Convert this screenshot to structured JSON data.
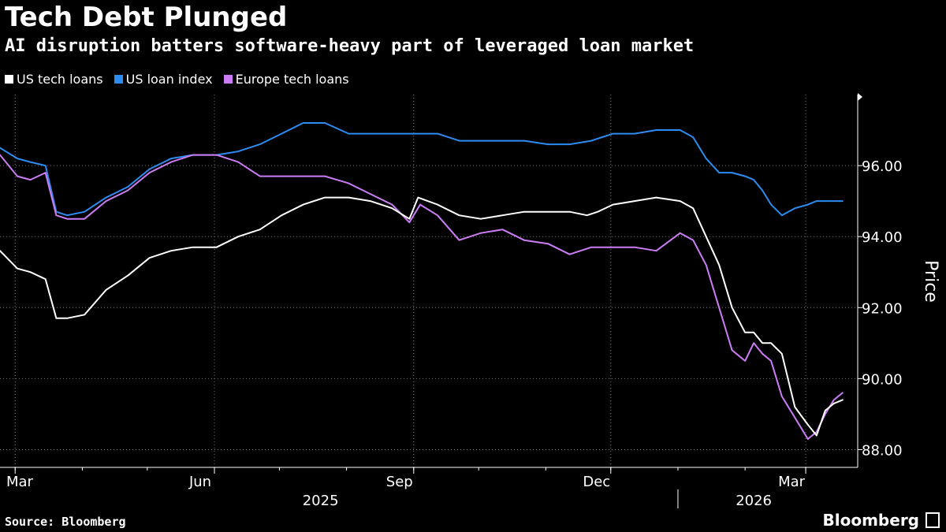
{
  "header": {
    "title": "Tech Debt Plunged",
    "subtitle": "AI disruption batters software-heavy part of leveraged loan market"
  },
  "footer": {
    "source": "Source: Bloomberg",
    "brand": "Bloomberg"
  },
  "chart_data": {
    "type": "line",
    "title": "Tech Debt Plunged",
    "subtitle": "AI disruption batters software-heavy part of leveraged loan market",
    "xlabel": "",
    "ylabel": "Price",
    "ylim": [
      87.5,
      98.0
    ],
    "yticks": [
      "88.00",
      "90.00",
      "92.00",
      "94.00",
      "96.00"
    ],
    "ytick_values": [
      88,
      90,
      92,
      94,
      96
    ],
    "xticks": [
      "Mar",
      "Jun",
      "Sep",
      "Dec",
      "Mar"
    ],
    "xtick_dates": [
      "2025-03-01",
      "2025-06-01",
      "2025-09-01",
      "2025-12-01",
      "2026-03-01"
    ],
    "year_labels": [
      "2025",
      "2026"
    ],
    "x_range": [
      "2025-02-22",
      "2026-03-25"
    ],
    "grid": true,
    "legend_position": "top-left",
    "series": [
      {
        "name": "US tech loans",
        "color": "#ffffff",
        "x": [
          "2025-02-22",
          "2025-03-02",
          "2025-03-08",
          "2025-03-15",
          "2025-03-20",
          "2025-03-25",
          "2025-04-02",
          "2025-04-12",
          "2025-04-22",
          "2025-05-02",
          "2025-05-12",
          "2025-05-22",
          "2025-06-02",
          "2025-06-12",
          "2025-06-22",
          "2025-07-02",
          "2025-07-12",
          "2025-07-22",
          "2025-08-02",
          "2025-08-12",
          "2025-08-22",
          "2025-08-30",
          "2025-09-03",
          "2025-09-12",
          "2025-09-22",
          "2025-10-02",
          "2025-10-12",
          "2025-10-22",
          "2025-11-02",
          "2025-11-12",
          "2025-11-20",
          "2025-11-25",
          "2025-12-02",
          "2025-12-12",
          "2025-12-22",
          "2026-01-02",
          "2026-01-08",
          "2026-01-14",
          "2026-01-20",
          "2026-01-26",
          "2026-02-01",
          "2026-02-05",
          "2026-02-09",
          "2026-02-13",
          "2026-02-18",
          "2026-02-24",
          "2026-03-02",
          "2026-03-06",
          "2026-03-10",
          "2026-03-14",
          "2026-03-18"
        ],
        "y": [
          93.6,
          93.1,
          93.0,
          92.8,
          91.7,
          91.7,
          91.8,
          92.5,
          92.9,
          93.4,
          93.6,
          93.7,
          93.7,
          94.0,
          94.2,
          94.6,
          94.9,
          95.1,
          95.1,
          95.0,
          94.8,
          94.5,
          95.1,
          94.9,
          94.6,
          94.5,
          94.6,
          94.7,
          94.7,
          94.7,
          94.6,
          94.7,
          94.9,
          95.0,
          95.1,
          95.0,
          94.8,
          94.0,
          93.2,
          92.0,
          91.3,
          91.3,
          91.0,
          91.0,
          90.7,
          89.2,
          88.7,
          88.4,
          89.1,
          89.3,
          89.4
        ]
      },
      {
        "name": "US loan index",
        "color": "#2d8cf0",
        "x": [
          "2025-02-22",
          "2025-03-02",
          "2025-03-08",
          "2025-03-15",
          "2025-03-20",
          "2025-03-25",
          "2025-04-02",
          "2025-04-12",
          "2025-04-22",
          "2025-05-02",
          "2025-05-12",
          "2025-05-22",
          "2025-06-02",
          "2025-06-12",
          "2025-06-22",
          "2025-07-02",
          "2025-07-12",
          "2025-07-22",
          "2025-08-02",
          "2025-08-12",
          "2025-08-22",
          "2025-09-02",
          "2025-09-12",
          "2025-09-22",
          "2025-10-02",
          "2025-10-12",
          "2025-10-22",
          "2025-11-02",
          "2025-11-12",
          "2025-11-22",
          "2025-12-02",
          "2025-12-12",
          "2025-12-22",
          "2026-01-02",
          "2026-01-08",
          "2026-01-14",
          "2026-01-20",
          "2026-01-26",
          "2026-02-01",
          "2026-02-05",
          "2026-02-09",
          "2026-02-13",
          "2026-02-18",
          "2026-02-24",
          "2026-03-02",
          "2026-03-06",
          "2026-03-10",
          "2026-03-14",
          "2026-03-18"
        ],
        "y": [
          96.5,
          96.2,
          96.1,
          96.0,
          94.7,
          94.6,
          94.7,
          95.1,
          95.4,
          95.9,
          96.2,
          96.3,
          96.3,
          96.4,
          96.6,
          96.9,
          97.2,
          97.2,
          96.9,
          96.9,
          96.9,
          96.9,
          96.9,
          96.7,
          96.7,
          96.7,
          96.7,
          96.6,
          96.6,
          96.7,
          96.9,
          96.9,
          97.0,
          97.0,
          96.8,
          96.2,
          95.8,
          95.8,
          95.7,
          95.6,
          95.3,
          94.9,
          94.6,
          94.8,
          94.9,
          95.0,
          95.0,
          95.0,
          95.0
        ]
      },
      {
        "name": "Europe tech loans",
        "color": "#cc7df5",
        "x": [
          "2025-02-22",
          "2025-03-02",
          "2025-03-08",
          "2025-03-15",
          "2025-03-20",
          "2025-03-25",
          "2025-04-02",
          "2025-04-12",
          "2025-04-22",
          "2025-05-02",
          "2025-05-12",
          "2025-05-22",
          "2025-06-02",
          "2025-06-12",
          "2025-06-22",
          "2025-07-02",
          "2025-07-12",
          "2025-07-22",
          "2025-08-02",
          "2025-08-12",
          "2025-08-22",
          "2025-08-30",
          "2025-09-04",
          "2025-09-12",
          "2025-09-22",
          "2025-10-02",
          "2025-10-12",
          "2025-10-22",
          "2025-11-02",
          "2025-11-12",
          "2025-11-22",
          "2025-12-02",
          "2025-12-12",
          "2025-12-22",
          "2026-01-02",
          "2026-01-08",
          "2026-01-14",
          "2026-01-20",
          "2026-01-26",
          "2026-02-01",
          "2026-02-05",
          "2026-02-09",
          "2026-02-13",
          "2026-02-18",
          "2026-02-24",
          "2026-03-02",
          "2026-03-06",
          "2026-03-10",
          "2026-03-14",
          "2026-03-18"
        ],
        "y": [
          96.3,
          95.7,
          95.6,
          95.8,
          94.6,
          94.5,
          94.5,
          95.0,
          95.3,
          95.8,
          96.1,
          96.3,
          96.3,
          96.1,
          95.7,
          95.7,
          95.7,
          95.7,
          95.5,
          95.2,
          94.9,
          94.4,
          94.9,
          94.6,
          93.9,
          94.1,
          94.2,
          93.9,
          93.8,
          93.5,
          93.7,
          93.7,
          93.7,
          93.6,
          94.1,
          93.9,
          93.2,
          92.0,
          90.8,
          90.5,
          91.0,
          90.7,
          90.5,
          89.5,
          88.9,
          88.3,
          88.5,
          89.0,
          89.4,
          89.6
        ]
      }
    ]
  }
}
